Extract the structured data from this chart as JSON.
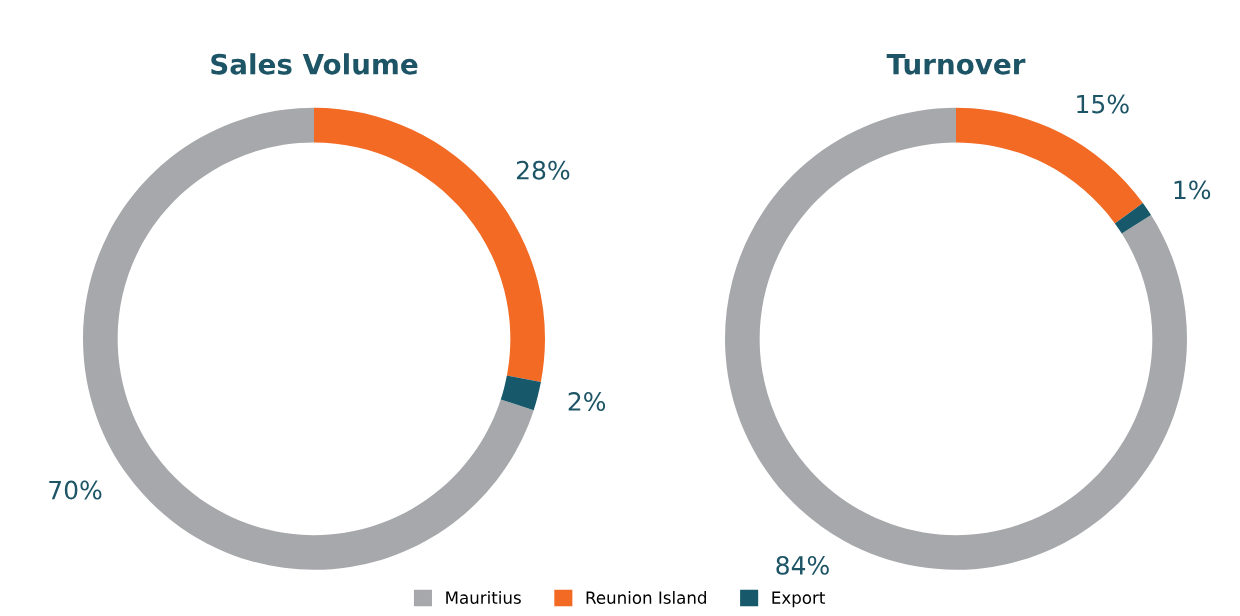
{
  "chart_data": [
    {
      "type": "donut",
      "title": "Sales Volume",
      "categories": [
        "Mauritius",
        "Reunion Island",
        "Export"
      ],
      "values": [
        70,
        28,
        2
      ],
      "value_labels": [
        "70%",
        "28%",
        "2%"
      ],
      "colors": [
        "#a7a8ab",
        "#f26a23",
        "#17596b"
      ],
      "legend": "bottom"
    },
    {
      "type": "donut",
      "title": "Turnover",
      "categories": [
        null,
        null,
        null
      ],
      "values": [
        84,
        15,
        1
      ],
      "value_labels": [
        "84%",
        "15%",
        "1%"
      ],
      "colors": [
        "#a7a8ab",
        "#f26a23",
        "#17596b"
      ]
    }
  ]
}
